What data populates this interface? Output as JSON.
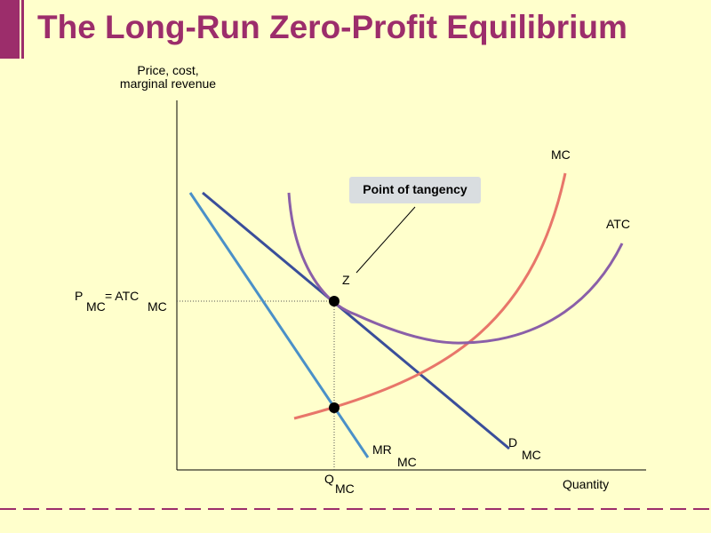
{
  "slide": {
    "title": "The Long-Run Zero-Profit Equilibrium"
  },
  "axes": {
    "y_label_line1": "Price, cost,",
    "y_label_line2": "marginal revenue",
    "x_label": "Quantity"
  },
  "curves": {
    "mc": {
      "label": "MC",
      "color": "#e8766a"
    },
    "atc": {
      "label": "ATC",
      "color": "#8a5fa8"
    },
    "demand": {
      "label": "D",
      "subscript": "MC",
      "color": "#3a4e9a"
    },
    "mr": {
      "label": "MR",
      "subscript": "MC",
      "color": "#4a90c8"
    }
  },
  "annotations": {
    "tangency_callout": "Point of tangency",
    "tangency_point": "Z",
    "price_label": "P",
    "price_sub": "MC",
    "price_eq": "=  ATC",
    "price_eq_sub": "MC",
    "quantity_label": "Q",
    "quantity_sub": "MC"
  },
  "colors": {
    "title": "#9c2d6b",
    "background": "#ffffcc",
    "callout_bg": "#d9dde0"
  }
}
